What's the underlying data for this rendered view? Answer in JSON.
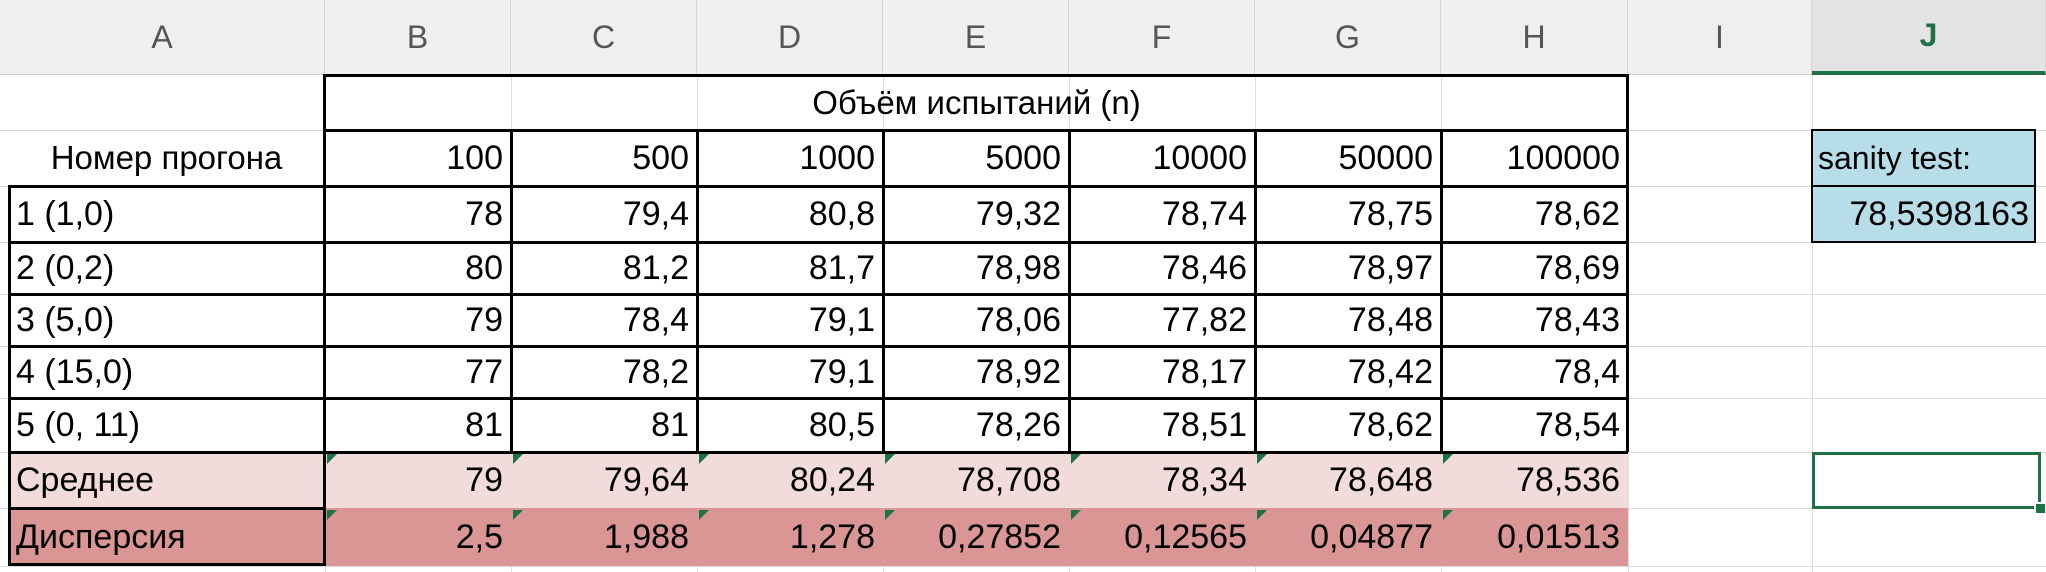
{
  "column_headers": [
    "A",
    "B",
    "C",
    "D",
    "E",
    "F",
    "G",
    "H",
    "I",
    "J"
  ],
  "selected_column": "J",
  "table": {
    "group_header": "Объём испытаний (n)",
    "row_header_label": "Номер прогона",
    "sample_sizes": [
      "100",
      "500",
      "1000",
      "5000",
      "10000",
      "50000",
      "100000"
    ],
    "runs": [
      {
        "label": "1 (1,0)",
        "values": [
          "78",
          "79,4",
          "80,8",
          "79,32",
          "78,74",
          "78,75",
          "78,62"
        ]
      },
      {
        "label": "2 (0,2)",
        "values": [
          "80",
          "81,2",
          "81,7",
          "78,98",
          "78,46",
          "78,97",
          "78,69"
        ]
      },
      {
        "label": "3 (5,0)",
        "values": [
          "79",
          "78,4",
          "79,1",
          "78,06",
          "77,82",
          "78,48",
          "78,43"
        ]
      },
      {
        "label": "4 (15,0)",
        "values": [
          "77",
          "78,2",
          "79,1",
          "78,92",
          "78,17",
          "78,42",
          "78,4"
        ]
      },
      {
        "label": "5 (0, 11)",
        "values": [
          "81",
          "81",
          "80,5",
          "78,26",
          "78,51",
          "78,62",
          "78,54"
        ]
      }
    ],
    "mean": {
      "label": "Среднее",
      "values": [
        "79",
        "79,64",
        "80,24",
        "78,708",
        "78,34",
        "78,648",
        "78,536"
      ]
    },
    "variance": {
      "label": "Дисперсия",
      "values": [
        "2,5",
        "1,988",
        "1,278",
        "0,27852",
        "0,12565",
        "0,04877",
        "0,01513"
      ]
    }
  },
  "sanity": {
    "label": "sanity test:",
    "value": "78,5398163"
  },
  "colors": {
    "mean_fill": "#f2dcdb",
    "variance_fill": "#da9694",
    "sanity_fill": "#b7dee8",
    "selection": "#1e7145"
  }
}
